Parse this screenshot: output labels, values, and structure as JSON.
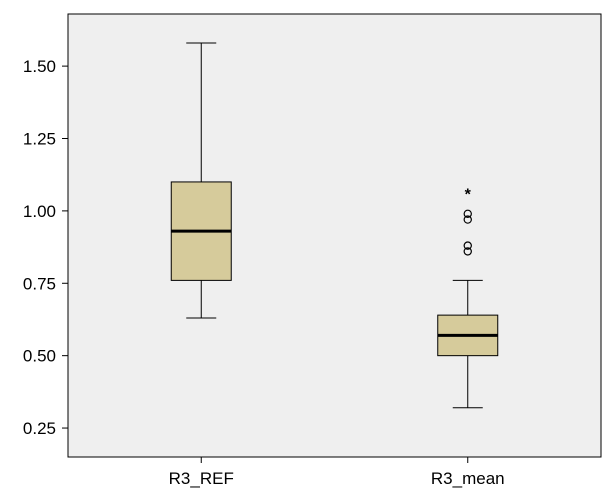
{
  "chart_data": {
    "type": "boxplot",
    "title": "",
    "xlabel": "",
    "ylabel": "",
    "ylim": [
      0.15,
      1.68
    ],
    "yticks": [
      0.25,
      0.5,
      0.75,
      1.0,
      1.25,
      1.5
    ],
    "ytick_labels": [
      "0.25",
      "0.50",
      "0.75",
      "1.00",
      "1.25",
      "1.50"
    ],
    "grid": false,
    "colors": {
      "plot_background": "#efefef",
      "box_fill": "#d6cb9b",
      "line": "#000000"
    },
    "boxes": [
      {
        "category": "R3_REF",
        "whisker_low": 0.63,
        "q1": 0.76,
        "median": 0.93,
        "q3": 1.1,
        "whisker_high": 1.58,
        "outliers": [],
        "extremes": []
      },
      {
        "category": "R3_mean",
        "whisker_low": 0.32,
        "q1": 0.5,
        "median": 0.57,
        "q3": 0.64,
        "whisker_high": 0.76,
        "outliers": [
          0.86,
          0.88,
          0.97,
          0.99
        ],
        "extremes": [
          1.07
        ]
      }
    ]
  }
}
